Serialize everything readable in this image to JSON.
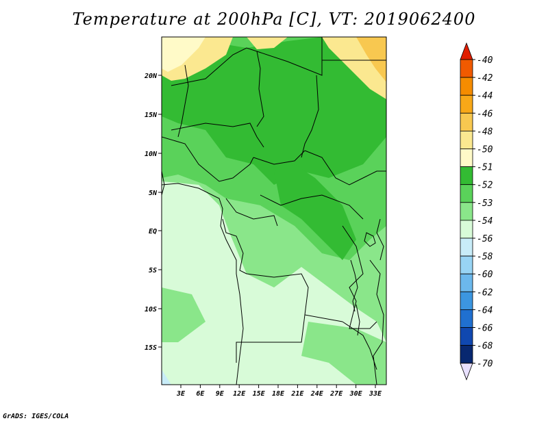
{
  "title": "Temperature at 200hPa [C], VT: 2019062400",
  "footer": "GrADS: IGES/COLA",
  "map": {
    "lat_ticks": [
      "20N",
      "15N",
      "10N",
      "5N",
      "EQ",
      "5S",
      "10S",
      "15S"
    ],
    "lon_ticks": [
      "3E",
      "6E",
      "9E",
      "12E",
      "15E",
      "18E",
      "21E",
      "24E",
      "27E",
      "30E",
      "33E"
    ]
  },
  "colorbar": {
    "labels": [
      "-40",
      "-42",
      "-44",
      "-46",
      "-48",
      "-50",
      "-51",
      "-52",
      "-53",
      "-54",
      "-56",
      "-58",
      "-60",
      "-62",
      "-64",
      "-66",
      "-68",
      "-70"
    ],
    "colors": [
      "#e01e00",
      "#f05a00",
      "#f58c00",
      "#f8a818",
      "#f8c850",
      "#fbe890",
      "#fffac8",
      "#33bb33",
      "#5ad25a",
      "#8ae68a",
      "#d8fbd8",
      "#c8ecf8",
      "#98d4f4",
      "#6cb8ec",
      "#3c96e0",
      "#2070d0",
      "#1048b0",
      "#082870",
      "#000060",
      "#e8e0ff"
    ]
  }
}
